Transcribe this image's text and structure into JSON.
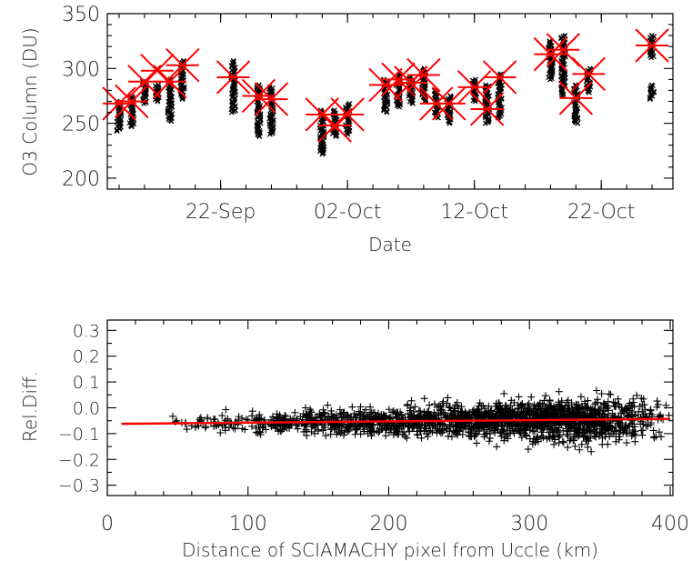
{
  "chart_data": [
    {
      "type": "scatter",
      "xlabel": "Date",
      "ylabel": "O3 Column (DU)",
      "x_ticklabels": [
        "22-Sep",
        "02-Oct",
        "12-Oct",
        "22-Oct"
      ],
      "x_ticks": [
        "2002-09-22",
        "2002-10-02",
        "2002-10-12",
        "2002-10-22"
      ],
      "xlim": [
        "2002-09-14",
        "2002-10-27"
      ],
      "ylim": [
        190,
        350
      ],
      "yticks": [
        200,
        250,
        300,
        350
      ],
      "series": [
        {
          "marker": "x",
          "color": "#000000",
          "points": [
            {
              "date": "2002-09-14",
              "min": 243,
              "max": 270
            },
            {
              "date": "2002-09-15",
              "min": 247,
              "max": 275
            },
            {
              "date": "2002-09-16",
              "min": 268,
              "max": 288
            },
            {
              "date": "2002-09-17",
              "min": 270,
              "max": 285
            },
            {
              "date": "2002-09-18",
              "min": 252,
              "max": 290
            },
            {
              "date": "2002-09-19",
              "min": 272,
              "max": 307
            },
            {
              "date": "2002-09-23",
              "min": 260,
              "max": 307
            },
            {
              "date": "2002-09-25",
              "min": 238,
              "max": 285
            },
            {
              "date": "2002-09-26",
              "min": 240,
              "max": 283
            },
            {
              "date": "2002-09-30",
              "min": 222,
              "max": 262
            },
            {
              "date": "2002-10-01",
              "min": 238,
              "max": 262
            },
            {
              "date": "2002-10-02",
              "min": 240,
              "max": 268
            },
            {
              "date": "2002-10-05",
              "min": 260,
              "max": 290
            },
            {
              "date": "2002-10-06",
              "min": 265,
              "max": 295
            },
            {
              "date": "2002-10-07",
              "min": 268,
              "max": 292
            },
            {
              "date": "2002-10-08",
              "min": 270,
              "max": 300
            },
            {
              "date": "2002-10-09",
              "min": 255,
              "max": 280
            },
            {
              "date": "2002-10-10",
              "min": 250,
              "max": 275
            },
            {
              "date": "2002-10-12",
              "min": 270,
              "max": 290
            },
            {
              "date": "2002-10-13",
              "min": 250,
              "max": 285
            },
            {
              "date": "2002-10-14",
              "min": 255,
              "max": 295
            },
            {
              "date": "2002-10-18",
              "min": 290,
              "max": 325
            },
            {
              "date": "2002-10-19",
              "min": 275,
              "max": 330
            },
            {
              "date": "2002-10-20",
              "min": 250,
              "max": 285
            },
            {
              "date": "2002-10-21",
              "min": 278,
              "max": 300
            },
            {
              "date": "2002-10-26",
              "min": 272,
              "max": 285
            },
            {
              "date": "2002-10-26",
              "min": 310,
              "max": 330
            }
          ]
        },
        {
          "marker": "asterisk",
          "color": "#ff0000",
          "points": [
            {
              "date": "2002-09-14",
              "value": 268
            },
            {
              "date": "2002-09-15",
              "value": 270
            },
            {
              "date": "2002-09-16",
              "value": 288
            },
            {
              "date": "2002-09-17",
              "value": 298
            },
            {
              "date": "2002-09-18",
              "value": 288
            },
            {
              "date": "2002-09-19",
              "value": 303
            },
            {
              "date": "2002-09-23",
              "value": 292
            },
            {
              "date": "2002-09-25",
              "value": 275
            },
            {
              "date": "2002-09-26",
              "value": 272
            },
            {
              "date": "2002-09-30",
              "value": 258
            },
            {
              "date": "2002-10-01",
              "value": 248
            },
            {
              "date": "2002-10-02",
              "value": 258
            },
            {
              "date": "2002-10-05",
              "value": 285
            },
            {
              "date": "2002-10-06",
              "value": 290
            },
            {
              "date": "2002-10-07",
              "value": 287
            },
            {
              "date": "2002-10-08",
              "value": 294
            },
            {
              "date": "2002-10-09",
              "value": 268
            },
            {
              "date": "2002-10-10",
              "value": 268
            },
            {
              "date": "2002-10-12",
              "value": 283
            },
            {
              "date": "2002-10-13",
              "value": 263
            },
            {
              "date": "2002-10-14",
              "value": 292
            },
            {
              "date": "2002-10-18",
              "value": 313
            },
            {
              "date": "2002-10-19",
              "value": 317
            },
            {
              "date": "2002-10-20",
              "value": 273
            },
            {
              "date": "2002-10-21",
              "value": 295
            },
            {
              "date": "2002-10-26",
              "value": 321
            }
          ]
        }
      ]
    },
    {
      "type": "scatter",
      "xlabel": "Distance of SCIAMACHY pixel from Uccle (km)",
      "ylabel": "Rel.Diff.",
      "xlim": [
        0,
        400
      ],
      "ylim": [
        -0.34,
        0.34
      ],
      "xticks": [
        0,
        100,
        200,
        300,
        400
      ],
      "yticks": [
        -0.3,
        -0.2,
        -0.1,
        0.0,
        0.1,
        0.2,
        0.3
      ],
      "ytick_labels": [
        "−0.3",
        "−0.2",
        "−0.1",
        "0.0",
        "0.1",
        "0.2",
        "0.3"
      ],
      "marker": "+",
      "color": "#000000",
      "scatter_summary": {
        "x_range": [
          10,
          400
        ],
        "mean_rel_diff": -0.05,
        "spread_near_10km": 0.02,
        "spread_near_400km": 0.1
      },
      "fit_line": {
        "color": "#ff0000",
        "x": [
          10,
          400
        ],
        "y": [
          -0.062,
          -0.043
        ]
      }
    }
  ]
}
